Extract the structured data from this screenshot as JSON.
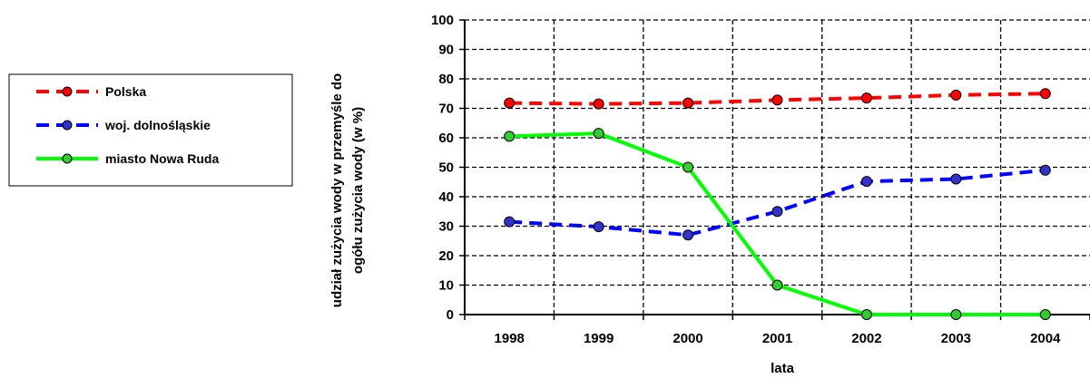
{
  "chart_data": {
    "type": "line",
    "x": [
      "1998",
      "1999",
      "2000",
      "2001",
      "2002",
      "2003",
      "2004"
    ],
    "series": [
      {
        "name": "Polska",
        "values": [
          71.8,
          71.5,
          71.8,
          72.8,
          73.5,
          74.5,
          75.0
        ],
        "color": "#ff0000",
        "line_style": "dashed",
        "marker_color": "#ff0000"
      },
      {
        "name": "woj. dolnośląskie",
        "values": [
          31.5,
          29.8,
          27.0,
          35.0,
          45.2,
          46.0,
          49.0
        ],
        "color": "#0000ff",
        "line_style": "dashed",
        "marker_color": "#3333cc"
      },
      {
        "name": "miasto Nowa Ruda",
        "values": [
          60.5,
          61.5,
          50.0,
          10.0,
          0.0,
          0.0,
          0.0
        ],
        "color": "#00ff00",
        "line_style": "solid",
        "marker_color": "#33cc33"
      }
    ],
    "ylim": [
      0,
      100
    ],
    "yticks": [
      "0",
      "10",
      "20",
      "30",
      "40",
      "50",
      "60",
      "70",
      "80",
      "90",
      "100"
    ],
    "xlabel": "lata",
    "ylabel_lines": [
      "udział zużycia wody w przemyśle do",
      "ogółu zużycia wody (w %)"
    ],
    "grid": true,
    "legend_position": "left"
  }
}
